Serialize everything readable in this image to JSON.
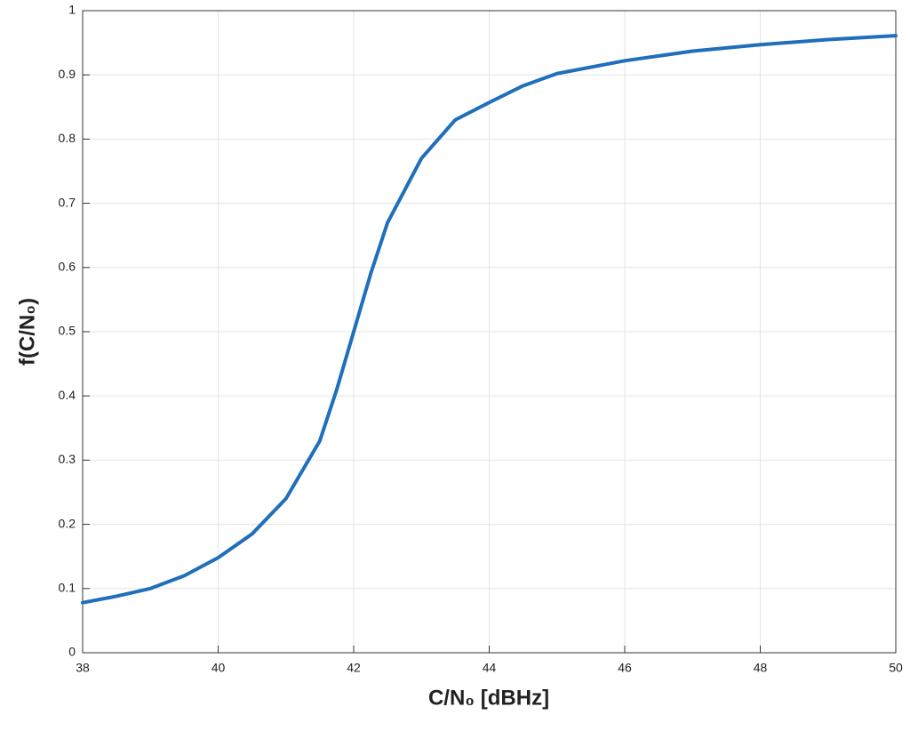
{
  "chart_data": {
    "type": "line",
    "xlabel": "C/N₀ [dBHz]",
    "ylabel": "f(C/N₀)",
    "x": [
      38,
      38.5,
      39,
      39.5,
      40,
      40.5,
      41,
      41.5,
      41.75,
      42,
      42.25,
      42.5,
      43,
      43.5,
      44,
      44.5,
      45,
      46,
      47,
      48,
      49,
      50
    ],
    "values": [
      0.078,
      0.088,
      0.1,
      0.12,
      0.148,
      0.185,
      0.24,
      0.33,
      0.41,
      0.5,
      0.59,
      0.67,
      0.77,
      0.83,
      0.857,
      0.883,
      0.902,
      0.922,
      0.937,
      0.947,
      0.955,
      0.961
    ],
    "color": "#1f6fba",
    "xlim": [
      38,
      50
    ],
    "xticks": [
      38,
      40,
      42,
      44,
      46,
      48,
      50
    ],
    "ylim": [
      0,
      1
    ],
    "yticks": [
      0,
      0.1,
      0.2,
      0.3,
      0.4,
      0.5,
      0.6,
      0.7,
      0.8,
      0.9,
      1
    ],
    "grid": true
  }
}
